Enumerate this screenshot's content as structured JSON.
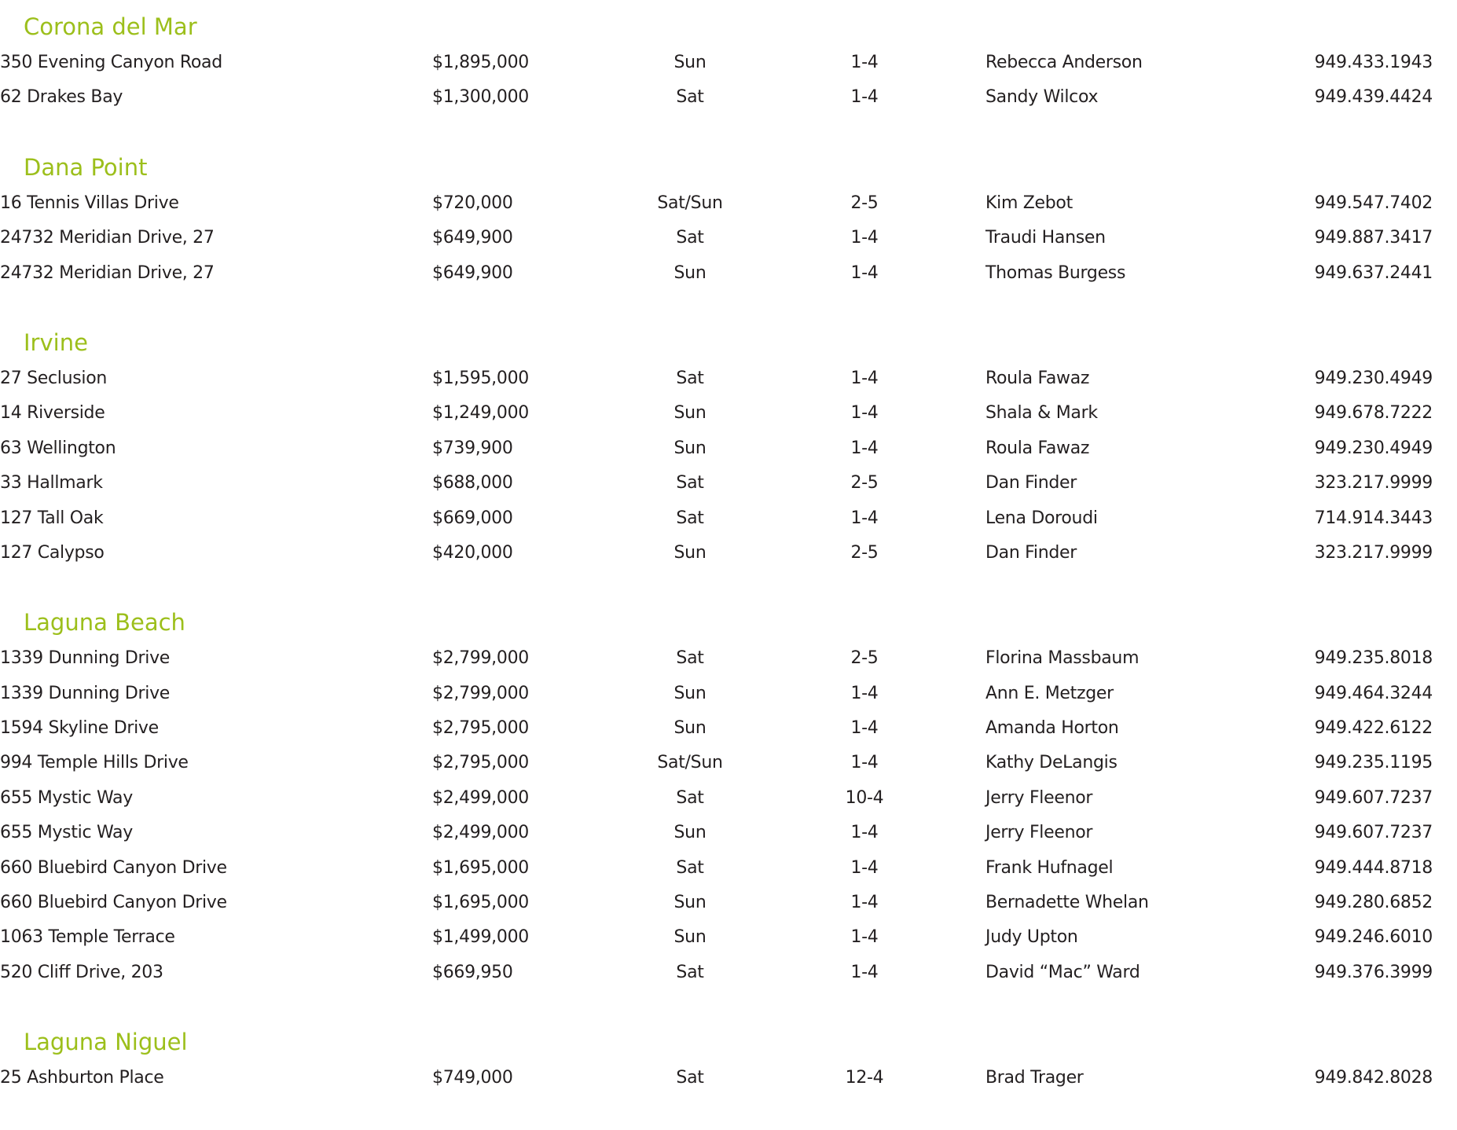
{
  "accent_color": "#9cbf1b",
  "sections": [
    {
      "city": "Corona del Mar",
      "listings": [
        {
          "address": "350 Evening Canyon Road",
          "price": "$1,895,000",
          "day": "Sun",
          "time": "1-4",
          "agent": "Rebecca Anderson",
          "phone": "949.433.1943"
        },
        {
          "address": "62 Drakes Bay",
          "price": "$1,300,000",
          "day": "Sat",
          "time": "1-4",
          "agent": "Sandy Wilcox",
          "phone": "949.439.4424"
        }
      ]
    },
    {
      "city": "Dana Point",
      "listings": [
        {
          "address": "16 Tennis Villas Drive",
          "price": "$720,000",
          "day": "Sat/Sun",
          "time": "2-5",
          "agent": "Kim Zebot",
          "phone": "949.547.7402"
        },
        {
          "address": "24732 Meridian Drive, 27",
          "price": "$649,900",
          "day": "Sat",
          "time": "1-4",
          "agent": "Traudi Hansen",
          "phone": "949.887.3417"
        },
        {
          "address": "24732 Meridian Drive, 27",
          "price": "$649,900",
          "day": "Sun",
          "time": "1-4",
          "agent": "Thomas Burgess",
          "phone": "949.637.2441"
        }
      ]
    },
    {
      "city": "Irvine",
      "listings": [
        {
          "address": "27 Seclusion",
          "price": "$1,595,000",
          "day": "Sat",
          "time": "1-4",
          "agent": "Roula Fawaz",
          "phone": "949.230.4949"
        },
        {
          "address": "14 Riverside",
          "price": "$1,249,000",
          "day": "Sun",
          "time": "1-4",
          "agent": "Shala & Mark",
          "phone": "949.678.7222"
        },
        {
          "address": "63 Wellington",
          "price": "$739,900",
          "day": "Sun",
          "time": "1-4",
          "agent": "Roula Fawaz",
          "phone": "949.230.4949"
        },
        {
          "address": "33 Hallmark",
          "price": "$688,000",
          "day": "Sat",
          "time": "2-5",
          "agent": "Dan Finder",
          "phone": "323.217.9999"
        },
        {
          "address": "127 Tall Oak",
          "price": "$669,000",
          "day": "Sat",
          "time": "1-4",
          "agent": "Lena Doroudi",
          "phone": "714.914.3443"
        },
        {
          "address": "127 Calypso",
          "price": "$420,000",
          "day": "Sun",
          "time": "2-5",
          "agent": "Dan Finder",
          "phone": "323.217.9999"
        }
      ]
    },
    {
      "city": "Laguna Beach",
      "listings": [
        {
          "address": "1339 Dunning Drive",
          "price": "$2,799,000",
          "day": "Sat",
          "time": "2-5",
          "agent": "Florina Massbaum",
          "phone": "949.235.8018"
        },
        {
          "address": "1339 Dunning Drive",
          "price": "$2,799,000",
          "day": "Sun",
          "time": "1-4",
          "agent": "Ann E. Metzger",
          "phone": "949.464.3244"
        },
        {
          "address": "1594 Skyline Drive",
          "price": "$2,795,000",
          "day": "Sun",
          "time": "1-4",
          "agent": "Amanda Horton",
          "phone": "949.422.6122"
        },
        {
          "address": "994 Temple Hills Drive",
          "price": "$2,795,000",
          "day": "Sat/Sun",
          "time": "1-4",
          "agent": "Kathy DeLangis",
          "phone": "949.235.1195"
        },
        {
          "address": "655 Mystic Way",
          "price": "$2,499,000",
          "day": "Sat",
          "time": "10-4",
          "agent": "Jerry Fleenor",
          "phone": "949.607.7237"
        },
        {
          "address": "655 Mystic Way",
          "price": "$2,499,000",
          "day": "Sun",
          "time": "1-4",
          "agent": "Jerry Fleenor",
          "phone": "949.607.7237"
        },
        {
          "address": "660 Bluebird Canyon Drive",
          "price": "$1,695,000",
          "day": "Sat",
          "time": "1-4",
          "agent": "Frank Hufnagel",
          "phone": "949.444.8718"
        },
        {
          "address": "660 Bluebird Canyon Drive",
          "price": "$1,695,000",
          "day": "Sun",
          "time": "1-4",
          "agent": "Bernadette Whelan",
          "phone": "949.280.6852"
        },
        {
          "address": "1063 Temple Terrace",
          "price": "$1,499,000",
          "day": "Sun",
          "time": "1-4",
          "agent": "Judy Upton",
          "phone": "949.246.6010"
        },
        {
          "address": "520 Cliff Drive, 203",
          "price": "$669,950",
          "day": "Sat",
          "time": "1-4",
          "agent": "David “Mac” Ward",
          "phone": "949.376.3999"
        }
      ]
    },
    {
      "city": "Laguna Niguel",
      "listings": [
        {
          "address": "25 Ashburton Place",
          "price": "$749,000",
          "day": "Sat",
          "time": "12-4",
          "agent": "Brad Trager",
          "phone": "949.842.8028"
        }
      ]
    }
  ]
}
